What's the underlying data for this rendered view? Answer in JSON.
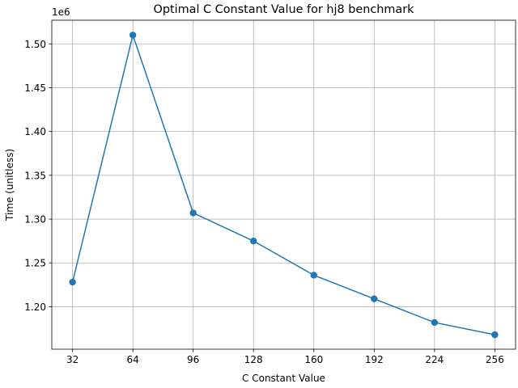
{
  "chart_data": {
    "type": "line",
    "title": "Optimal C Constant Value for hj8 benchmark",
    "xlabel": "C Constant Value",
    "ylabel": "Time (unitless)",
    "y_offset_label": "1e6",
    "x_ticks": [
      32,
      64,
      96,
      128,
      160,
      192,
      224,
      256
    ],
    "y_ticks": [
      1.2,
      1.25,
      1.3,
      1.35,
      1.4,
      1.45,
      1.5
    ],
    "y_tick_labels": [
      "1.20",
      "1.25",
      "1.30",
      "1.35",
      "1.40",
      "1.45",
      "1.50"
    ],
    "xlim": [
      21,
      267
    ],
    "ylim": [
      1.1515,
      1.527
    ],
    "grid": true,
    "marker": "circle",
    "color": "#1f77b4",
    "series": [
      {
        "x": [
          32,
          64,
          96,
          128,
          160,
          192,
          224,
          256
        ],
        "y": [
          1.228,
          1.51,
          1.307,
          1.275,
          1.236,
          1.209,
          1.182,
          1.168
        ]
      }
    ]
  }
}
